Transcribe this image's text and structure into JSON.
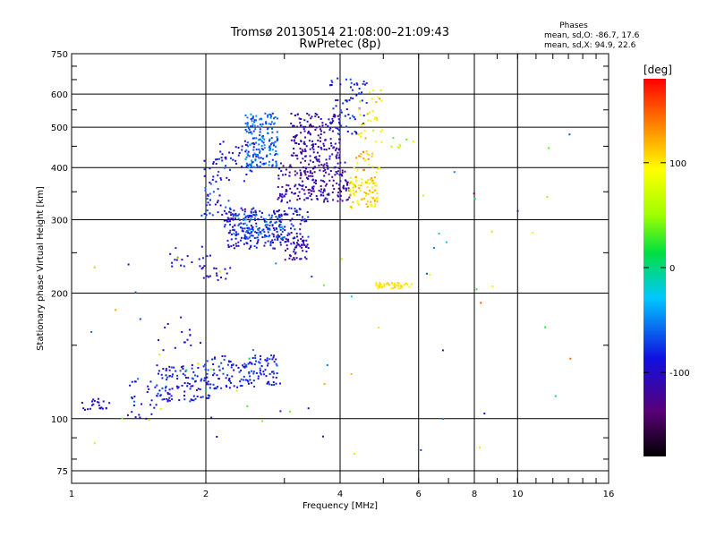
{
  "chart_data": {
    "type": "scatter",
    "title": "Tromsø 20130514 21:08:00–21:09:43",
    "subtitle": "RwPretec (8p)",
    "xlabel": "Frequency [MHz]",
    "ylabel": "Stationary phase Virtual Height [km]",
    "x_scale": "log",
    "y_scale": "log",
    "xlim": [
      1,
      16
    ],
    "ylim": [
      70,
      750
    ],
    "x_ticks": [
      1,
      2,
      4,
      6,
      8,
      10,
      16
    ],
    "x_tick_labels": [
      "1",
      "2",
      "4",
      "6",
      "8",
      "10",
      "16"
    ],
    "y_ticks": [
      75,
      100,
      200,
      300,
      400,
      500,
      600,
      750
    ],
    "y_tick_labels": [
      "75",
      "100",
      "200",
      "300",
      "400",
      "500",
      "600",
      "750"
    ],
    "grid": true,
    "stats": {
      "heading": "Phases",
      "o_line": "mean, sd,O: -86.7, 17.6",
      "x_line": "mean, sd,X:  94.9, 22.6"
    },
    "colorbar": {
      "label": "[deg]",
      "range": [
        -180,
        180
      ],
      "ticks": [
        100,
        0,
        -100
      ],
      "tick_labels": [
        "100",
        "0",
        "-100"
      ]
    },
    "clusters": [
      {
        "f": [
          1.05,
          1.22
        ],
        "h": [
          105,
          112
        ],
        "phase": [
          -110,
          -90
        ],
        "count": 22
      },
      {
        "f": [
          1.32,
          1.55
        ],
        "h": [
          100,
          125
        ],
        "phase": [
          -100,
          -80
        ],
        "count": 25
      },
      {
        "f": [
          1.55,
          2.05
        ],
        "h": [
          110,
          135
        ],
        "phase": [
          -110,
          -60
        ],
        "count": 110
      },
      {
        "f": [
          2.0,
          2.95
        ],
        "h": [
          118,
          142
        ],
        "phase": [
          -110,
          -60
        ],
        "count": 140
      },
      {
        "f": [
          1.55,
          1.95
        ],
        "h": [
          145,
          175
        ],
        "phase": [
          -110,
          -80
        ],
        "count": 15
      },
      {
        "f": [
          1.65,
          2.05
        ],
        "h": [
          225,
          260
        ],
        "phase": [
          -110,
          -70
        ],
        "count": 20
      },
      {
        "f": [
          1.95,
          2.3
        ],
        "h": [
          215,
          230
        ],
        "phase": [
          -110,
          -90
        ],
        "count": 15
      },
      {
        "f": [
          1.95,
          2.25
        ],
        "h": [
          300,
          420
        ],
        "phase": [
          -110,
          -60
        ],
        "count": 50
      },
      {
        "f": [
          2.2,
          3.4
        ],
        "h": [
          255,
          320
        ],
        "phase": [
          -120,
          -70
        ],
        "count": 260
      },
      {
        "f": [
          2.3,
          3.0
        ],
        "h": [
          270,
          310
        ],
        "phase": [
          -80,
          -40
        ],
        "count": 80
      },
      {
        "f": [
          2.45,
          2.9
        ],
        "h": [
          400,
          540
        ],
        "phase": [
          -80,
          -40
        ],
        "count": 170
      },
      {
        "f": [
          2.15,
          2.6
        ],
        "h": [
          370,
          470
        ],
        "phase": [
          -110,
          -70
        ],
        "count": 40
      },
      {
        "f": [
          2.9,
          4.2
        ],
        "h": [
          330,
          420
        ],
        "phase": [
          -140,
          -90
        ],
        "count": 220
      },
      {
        "f": [
          3.1,
          4.0
        ],
        "h": [
          420,
          540
        ],
        "phase": [
          -130,
          -90
        ],
        "count": 160
      },
      {
        "f": [
          3.0,
          3.4
        ],
        "h": [
          240,
          270
        ],
        "phase": [
          -130,
          -100
        ],
        "count": 40
      },
      {
        "f": [
          3.8,
          4.6
        ],
        "h": [
          480,
          660
        ],
        "phase": [
          -110,
          -60
        ],
        "count": 60
      },
      {
        "f": [
          4.2,
          4.85
        ],
        "h": [
          320,
          380
        ],
        "phase": [
          80,
          130
        ],
        "count": 90
      },
      {
        "f": [
          4.3,
          4.9
        ],
        "h": [
          390,
          440
        ],
        "phase": [
          90,
          140
        ],
        "count": 25
      },
      {
        "f": [
          4.4,
          5.0
        ],
        "h": [
          450,
          620
        ],
        "phase": [
          60,
          130
        ],
        "count": 35
      },
      {
        "f": [
          4.8,
          5.8
        ],
        "h": [
          205,
          212
        ],
        "phase": [
          90,
          110
        ],
        "count": 50
      },
      {
        "f": [
          5.2,
          6.0
        ],
        "h": [
          440,
          480
        ],
        "phase": [
          30,
          90
        ],
        "count": 8
      },
      {
        "f": [
          6.0,
          9.0
        ],
        "h": [
          80,
          400
        ],
        "phase": [
          -150,
          150
        ],
        "count": 18
      },
      {
        "f": [
          9.5,
          14.0
        ],
        "h": [
          110,
          560
        ],
        "phase": [
          -130,
          150
        ],
        "count": 8
      },
      {
        "f": [
          1.1,
          5.0
        ],
        "h": [
          80,
          250
        ],
        "phase": [
          -120,
          130
        ],
        "count": 40
      }
    ]
  }
}
